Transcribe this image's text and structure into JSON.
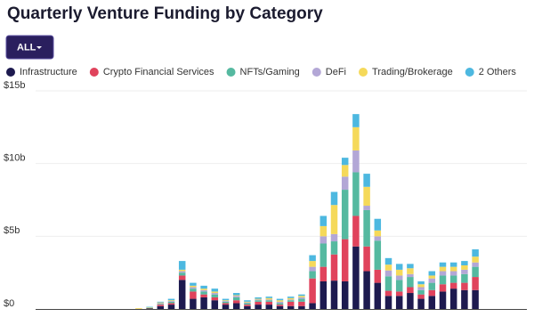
{
  "chart_data": {
    "type": "stacked-bar",
    "title": "Quarterly Venture Funding by Category",
    "filter": "ALL",
    "categories": [
      null,
      null,
      null,
      null,
      null,
      null,
      null,
      null,
      null,
      null,
      null,
      null,
      null,
      null,
      null,
      null,
      null,
      null,
      null,
      null,
      null,
      null,
      null,
      null,
      null,
      null,
      null,
      null,
      null,
      null,
      null,
      null,
      null,
      null,
      null,
      null,
      null,
      null,
      null,
      null,
      null
    ],
    "series": [
      {
        "name": "Infrastructure",
        "color": "#1d1a4f",
        "values": [
          0,
          0,
          0,
          0,
          0,
          0,
          0,
          0,
          0,
          0,
          0.05,
          0.2,
          0.3,
          2.0,
          0.7,
          0.8,
          0.6,
          0.3,
          0.4,
          0.2,
          0.3,
          0.3,
          0.2,
          0.2,
          0.2,
          0.4,
          1.9,
          1.95,
          1.9,
          4.3,
          2.6,
          1.8,
          0.9,
          0.9,
          1.1,
          0.7,
          0.9,
          1.2,
          1.4,
          1.3,
          1.3
        ]
      },
      {
        "name": "Crypto Financial Services",
        "color": "#e0435c",
        "values": [
          0,
          0,
          0,
          0,
          0,
          0,
          0,
          0,
          0,
          0,
          0,
          0.1,
          0.1,
          0.3,
          0.5,
          0.2,
          0.2,
          0.1,
          0.2,
          0.1,
          0.2,
          0.2,
          0.1,
          0.3,
          0.3,
          1.7,
          1.0,
          1.8,
          2.9,
          2.1,
          1.7,
          0.9,
          0.35,
          0.3,
          0.4,
          0.3,
          0.4,
          0.5,
          0.4,
          0.5,
          0.9
        ]
      },
      {
        "name": "NFTs/Gaming",
        "color": "#55b9a0",
        "values": [
          0,
          0,
          0,
          0,
          0,
          0,
          0,
          0,
          0,
          0,
          0,
          0.05,
          0.1,
          0.2,
          0.2,
          0.2,
          0.2,
          0.1,
          0.2,
          0.1,
          0.1,
          0.1,
          0.1,
          0.1,
          0.2,
          0.5,
          1.6,
          0.9,
          3.4,
          3.0,
          2.5,
          2.0,
          1.0,
          0.8,
          0.7,
          0.3,
          0.5,
          0.6,
          0.5,
          0.6,
          0.7
        ]
      },
      {
        "name": "DeFi",
        "color": "#b3a7d6",
        "values": [
          0,
          0,
          0,
          0,
          0,
          0,
          0,
          0,
          0,
          0,
          0,
          0.05,
          0.05,
          0.1,
          0.1,
          0.1,
          0.1,
          0.05,
          0.1,
          0.05,
          0.05,
          0.05,
          0.1,
          0.05,
          0.1,
          0.3,
          0.5,
          0.5,
          0.9,
          1.5,
          0.3,
          0.3,
          0.4,
          0.3,
          0.2,
          0.2,
          0.3,
          0.3,
          0.3,
          0.3,
          0.3
        ]
      },
      {
        "name": "Trading/Brokerage",
        "color": "#f5d95a",
        "values": [
          0,
          0,
          0,
          0,
          0,
          0,
          0,
          0,
          0,
          0.05,
          0.05,
          0.05,
          0.05,
          0.1,
          0.1,
          0.1,
          0.1,
          0.05,
          0.05,
          0.05,
          0.05,
          0.1,
          0.1,
          0.1,
          0.1,
          0.4,
          0.7,
          2.0,
          0.8,
          1.6,
          1.3,
          0.4,
          0.4,
          0.4,
          0.4,
          0.2,
          0.2,
          0.3,
          0.3,
          0.3,
          0.4
        ]
      },
      {
        "name": "2 Others",
        "color": "#4db8e0",
        "values": [
          0,
          0,
          0,
          0,
          0,
          0,
          0,
          0,
          0,
          0,
          0.05,
          0.05,
          0.1,
          0.6,
          0.2,
          0.2,
          0.2,
          0.1,
          0.15,
          0.1,
          0.1,
          0.1,
          0.1,
          0.1,
          0.1,
          0.4,
          0.7,
          0.9,
          0.5,
          0.9,
          0.9,
          0.8,
          0.45,
          0.4,
          0.3,
          0.2,
          0.3,
          0.3,
          0.3,
          0.3,
          0.5
        ]
      }
    ],
    "ylim": [
      0,
      15
    ],
    "yticks": [
      {
        "value": 0,
        "label": "$0"
      },
      {
        "value": 5,
        "label": "$5b"
      },
      {
        "value": 10,
        "label": "$10b"
      },
      {
        "value": 15,
        "label": "$15b"
      }
    ],
    "grid": true
  }
}
